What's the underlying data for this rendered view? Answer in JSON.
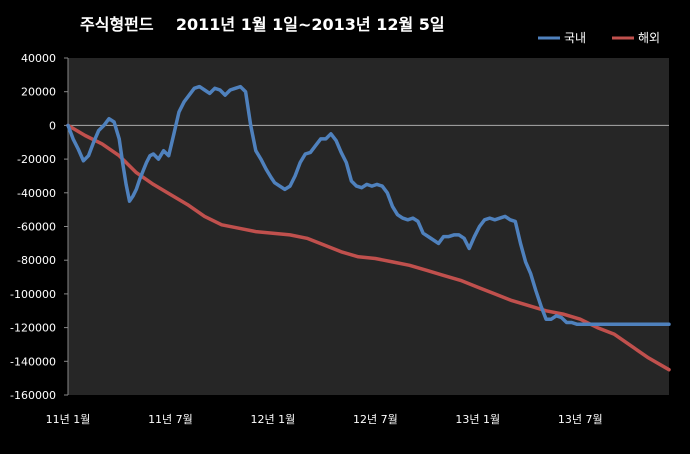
{
  "chart_data": {
    "type": "line",
    "title": "주식형펀드    2011년 1월 1일~2013년 12월 5일",
    "xlabel": "",
    "ylabel": "",
    "ylim": [
      -160000,
      40000
    ],
    "y_ticks": [
      "40000",
      "20000",
      "0",
      "-20000",
      "-40000",
      "-60000",
      "-80000",
      "-100000",
      "-120000",
      "-140000",
      "-160000"
    ],
    "y_tick_values": [
      40000,
      20000,
      0,
      -20000,
      -40000,
      -60000,
      -80000,
      -100000,
      -120000,
      -140000,
      -160000
    ],
    "x_ticks": [
      "11년 1월",
      "11년 7월",
      "12년 1월",
      "12년 7월",
      "13년 1월",
      "13년 7월"
    ],
    "x_tick_months": [
      0,
      6,
      12,
      18,
      24,
      30
    ],
    "xlim_months": [
      0,
      35.2
    ],
    "grid": false,
    "legend_position": "top-right",
    "colors": {
      "plot_bg": "#262626",
      "text": "#ffffff",
      "axis": "#888888",
      "domestic": "#4f81bd",
      "overseas": "#c0504d"
    },
    "series": [
      {
        "name": "국내",
        "color": "#4f81bd",
        "x": [
          0,
          0.3,
          0.6,
          0.9,
          1.2,
          1.5,
          1.8,
          2.1,
          2.4,
          2.7,
          3.0,
          3.2,
          3.4,
          3.6,
          3.8,
          4.0,
          4.2,
          4.4,
          4.6,
          4.8,
          5.0,
          5.3,
          5.6,
          5.9,
          6.2,
          6.5,
          6.8,
          7.1,
          7.4,
          7.7,
          8.0,
          8.3,
          8.6,
          8.9,
          9.2,
          9.5,
          9.8,
          10.1,
          10.4,
          10.7,
          11.0,
          11.3,
          11.6,
          11.9,
          12.1,
          12.4,
          12.7,
          13.0,
          13.3,
          13.6,
          13.9,
          14.2,
          14.5,
          14.8,
          15.1,
          15.4,
          15.7,
          16.0,
          16.3,
          16.6,
          16.9,
          17.2,
          17.5,
          17.8,
          18.1,
          18.4,
          18.7,
          19.0,
          19.3,
          19.6,
          19.9,
          20.2,
          20.5,
          20.8,
          21.1,
          21.4,
          21.7,
          22.0,
          22.3,
          22.6,
          22.9,
          23.2,
          23.5,
          23.8,
          24.1,
          24.4,
          24.7,
          25.0,
          25.3,
          25.6,
          25.9,
          26.2,
          26.5,
          26.8,
          27.1,
          27.4,
          27.7,
          28.0,
          28.3,
          28.6,
          28.9,
          29.2,
          29.5,
          29.8,
          30.1,
          30.4,
          30.7,
          31.0,
          31.3,
          31.6,
          31.9,
          32.2,
          32.5,
          32.8,
          33.1,
          33.4,
          33.7,
          34.0,
          34.3,
          34.6,
          34.9,
          35.2
        ],
        "values": [
          0,
          -8000,
          -14000,
          -21000,
          -18000,
          -10000,
          -3000,
          0,
          4000,
          2000,
          -8000,
          -22000,
          -35000,
          -45000,
          -42000,
          -38000,
          -32000,
          -27000,
          -22000,
          -18000,
          -17000,
          -20000,
          -15000,
          -18000,
          -5000,
          8000,
          14000,
          18000,
          22000,
          23000,
          21000,
          19000,
          22000,
          21000,
          18000,
          21000,
          22000,
          23000,
          20000,
          0,
          -15000,
          -20000,
          -26000,
          -31000,
          -34000,
          -36000,
          -38000,
          -36000,
          -30000,
          -22000,
          -17000,
          -16000,
          -12000,
          -8000,
          -8000,
          -5000,
          -9000,
          -16000,
          -22000,
          -33000,
          -36000,
          -37000,
          -35000,
          -36000,
          -35000,
          -36000,
          -40000,
          -48000,
          -53000,
          -55000,
          -56000,
          -55000,
          -57000,
          -64000,
          -66000,
          -68000,
          -70000,
          -66000,
          -66000,
          -65000,
          -65000,
          -67000,
          -73000,
          -66000,
          -60000,
          -56000,
          -55000,
          -56000,
          -55000,
          -54000,
          -56000,
          -57000,
          -70000,
          -81000,
          -88000,
          -98000,
          -107000,
          -115000,
          -115000,
          -113000,
          -114000,
          -117000,
          -117000,
          -118000,
          -118000,
          -118000,
          -118000,
          -118000,
          -118000,
          -118000,
          -118000,
          -118000,
          -118000,
          -118000,
          -118000,
          -118000,
          -118000,
          -118000,
          -118000,
          -118000,
          -118000,
          -118000
        ],
        "values_note": ""
      },
      {
        "name": "해외",
        "color": "#c0504d",
        "x": [
          0,
          1,
          2,
          3,
          4,
          5,
          6,
          7,
          8,
          9,
          10,
          11,
          12,
          13,
          14,
          15,
          16,
          17,
          18,
          19,
          20,
          21,
          22,
          23,
          24,
          25,
          26,
          27,
          28,
          29,
          30,
          31,
          32,
          33,
          34,
          35.2
        ],
        "values": [
          0,
          -6000,
          -11000,
          -18000,
          -28000,
          -35000,
          -41000,
          -47000,
          -54000,
          -59000,
          -61000,
          -63000,
          -64000,
          -65000,
          -67000,
          -71000,
          -75000,
          -78000,
          -79000,
          -81000,
          -83000,
          -86000,
          -89000,
          -92000,
          -96000,
          -100000,
          -104000,
          -107000,
          -110000,
          -112000,
          -115000,
          -120000,
          -124000,
          -131000,
          -138000,
          -145000
        ]
      }
    ]
  }
}
